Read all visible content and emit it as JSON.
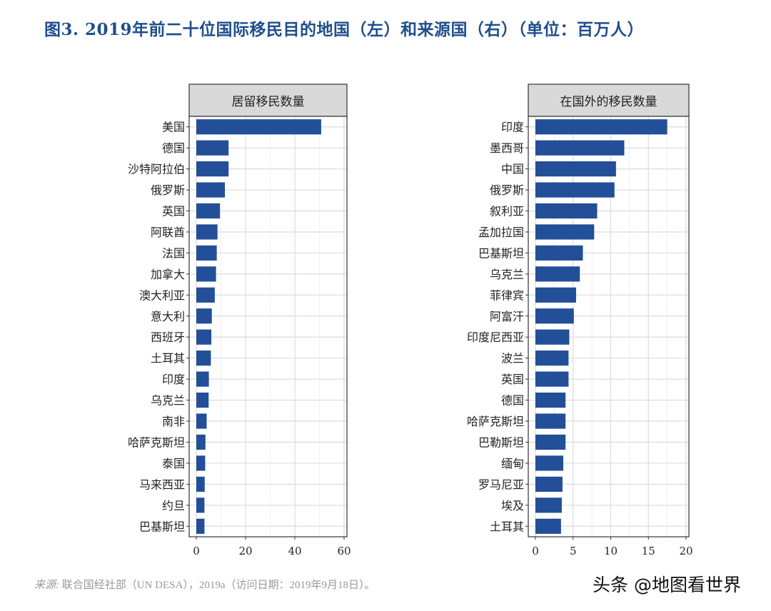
{
  "title": "图3. 2019年前二十位国际移民目的地国（左）和来源国（右）（单位：百万人）",
  "source_label": "来源:",
  "source_text": "联合国经社部（UN DESA），2019a（访问日期：2019年9月18日）。",
  "watermark": "头条 @地图看世界",
  "bar_color": "#224f97",
  "chart_data": [
    {
      "type": "bar",
      "orientation": "horizontal",
      "title": "居留移民数量",
      "xlim": [
        0,
        60
      ],
      "xticks": [
        0,
        20,
        40,
        60
      ],
      "grid": true,
      "categories": [
        "美国",
        "德国",
        "沙特阿拉伯",
        "俄罗斯",
        "英国",
        "阿联酋",
        "法国",
        "加拿大",
        "澳大利亚",
        "意大利",
        "西班牙",
        "土耳其",
        "印度",
        "乌克兰",
        "南非",
        "哈萨克斯坦",
        "泰国",
        "马来西亚",
        "约旦",
        "巴基斯坦"
      ],
      "values": [
        50.7,
        13.1,
        13.1,
        11.6,
        9.6,
        8.6,
        8.3,
        8.0,
        7.5,
        6.3,
        6.1,
        5.9,
        5.1,
        5.0,
        4.2,
        3.7,
        3.6,
        3.4,
        3.3,
        3.3
      ]
    },
    {
      "type": "bar",
      "orientation": "horizontal",
      "title": "在国外的移民数量",
      "xlim": [
        0,
        20
      ],
      "xticks": [
        0,
        5,
        10,
        15,
        20
      ],
      "grid": true,
      "categories": [
        "印度",
        "墨西哥",
        "中国",
        "俄罗斯",
        "叙利亚",
        "孟加拉国",
        "巴基斯坦",
        "乌克兰",
        "菲律宾",
        "阿富汗",
        "印度尼西亚",
        "波兰",
        "英国",
        "德国",
        "哈萨克斯坦",
        "巴勒斯坦",
        "缅甸",
        "罗马尼亚",
        "埃及",
        "土耳其"
      ],
      "values": [
        17.5,
        11.8,
        10.7,
        10.5,
        8.2,
        7.8,
        6.3,
        5.9,
        5.4,
        5.1,
        4.5,
        4.4,
        4.4,
        4.0,
        4.0,
        4.0,
        3.7,
        3.6,
        3.5,
        3.4
      ]
    }
  ]
}
